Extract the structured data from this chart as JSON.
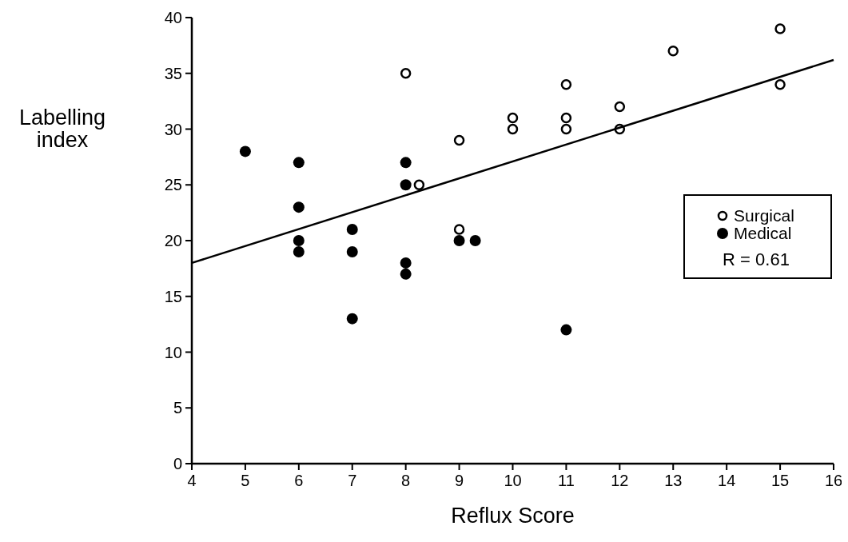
{
  "chart_data": {
    "type": "scatter",
    "xlabel": "Reflux Score",
    "ylabel": "Labelling\nindex",
    "xlim": [
      4,
      16
    ],
    "xticks": [
      4,
      5,
      6,
      7,
      8,
      9,
      10,
      11,
      12,
      13,
      14,
      15,
      16
    ],
    "ylim": [
      0,
      40
    ],
    "yticks": [
      0,
      5,
      10,
      15,
      20,
      25,
      30,
      35,
      40
    ],
    "grid": false,
    "legend": "right",
    "marker": "circle",
    "annotations": [
      "R = 0.61"
    ],
    "series": [
      {
        "name": "Surgical",
        "color": "#000000",
        "x": [
          8,
          8.25,
          9,
          9,
          10,
          10,
          11,
          11,
          11,
          12,
          12,
          13,
          15,
          15
        ],
        "values": [
          35,
          25,
          29,
          21,
          31,
          30,
          34,
          31,
          30,
          32,
          30,
          37,
          39,
          34
        ]
      },
      {
        "name": "Medical",
        "color": "#000000",
        "x": [
          5,
          6,
          6,
          6,
          6,
          7,
          7,
          7,
          8,
          8,
          8,
          8,
          9,
          9.3,
          11
        ],
        "values": [
          28,
          27,
          23,
          20,
          19,
          21,
          19,
          13,
          27,
          25,
          18,
          17,
          20,
          20,
          12
        ]
      },
      {
        "type": "line",
        "color": "#000000",
        "marker": "none",
        "x": [
          4,
          16
        ],
        "values": [
          18,
          36.2
        ]
      }
    ]
  }
}
